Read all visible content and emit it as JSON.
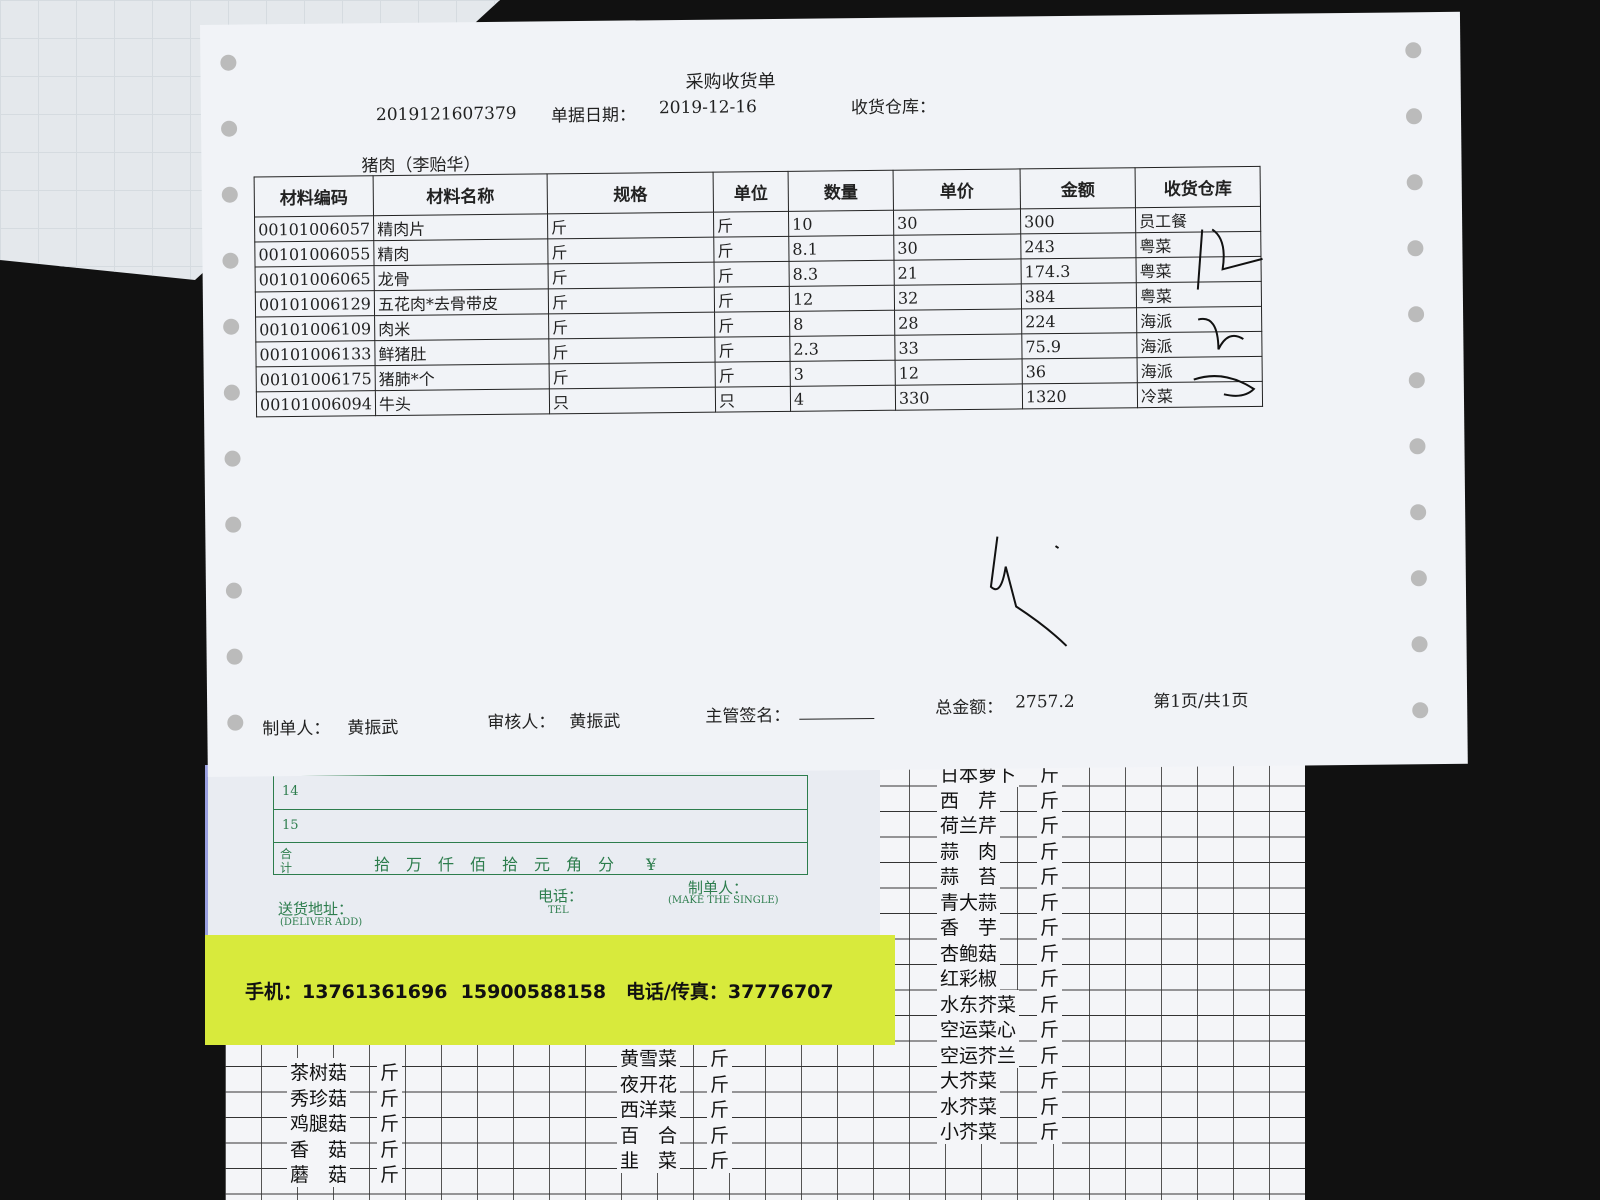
{
  "receipt": {
    "title": "采购收货单",
    "doc_no": "2019121607379",
    "date_label": "单据日期：",
    "date": "2019-12-16",
    "warehouse_label": "收货仓库：",
    "supplier": "猪肉（李贻华）",
    "columns": [
      "材料编码",
      "材料名称",
      "规格",
      "单位",
      "数量",
      "单价",
      "金额",
      "收货仓库"
    ],
    "rows": [
      [
        "00101006057",
        "精肉片",
        "斤",
        "斤",
        "10",
        "30",
        "300",
        "员工餐"
      ],
      [
        "00101006055",
        "精肉",
        "斤",
        "斤",
        "8.1",
        "30",
        "243",
        "粤菜"
      ],
      [
        "00101006065",
        "龙骨",
        "斤",
        "斤",
        "8.3",
        "21",
        "174.3",
        "粤菜"
      ],
      [
        "00101006129",
        "五花肉*去骨带皮",
        "斤",
        "斤",
        "12",
        "32",
        "384",
        "粤菜"
      ],
      [
        "00101006109",
        "肉米",
        "斤",
        "斤",
        "8",
        "28",
        "224",
        "海派"
      ],
      [
        "00101006133",
        "鲜猪肚",
        "斤",
        "斤",
        "2.3",
        "33",
        "75.9",
        "海派"
      ],
      [
        "00101006175",
        "猪肺*个",
        "斤",
        "斤",
        "3",
        "12",
        "36",
        "海派"
      ],
      [
        "00101006094",
        "牛头",
        "只",
        "只",
        "4",
        "330",
        "1320",
        "冷菜"
      ]
    ],
    "maker_label": "制单人：",
    "maker": "黄振武",
    "auditor_label": "审核人：",
    "auditor": "黄振武",
    "supervisor_label": "主管签名：",
    "total_label": "总金额：",
    "total": "2757.2",
    "page": "第1页/共1页"
  },
  "green_receipt": {
    "rows": [
      "14",
      "15"
    ],
    "total_label": "合计",
    "amount_units": "拾　万　仟　佰　拾　元　角　分　　¥",
    "address_label": "送货地址：",
    "address_en": "(DELIVER ADD)",
    "tel_label": "电话：",
    "tel_en": "TEL",
    "maker_label": "制单人：",
    "maker_en": "(MAKE THE SINGLE)"
  },
  "yellow_strip": {
    "contact": "手机：13761361696  15900588158   电话/传真：37776707"
  },
  "grid_sheet": {
    "right_items": [
      "日本萝卜",
      "西　芹",
      "荷兰芹",
      "蒜　肉",
      "蒜　苔",
      "青大蒜",
      "香　芋",
      "杏鲍菇",
      "红彩椒",
      "水东芥菜",
      "空运菜心",
      "空运芥兰",
      "大芥菜",
      "水芥菜",
      "小芥菜"
    ],
    "left_items": [
      "茶树菇",
      "秀珍菇",
      "鸡腿菇",
      "香　菇",
      "蘑　菇"
    ],
    "middle_items": [
      "黄雪菜",
      "夜开花",
      "西洋菜",
      "百　合",
      "韭　菜"
    ],
    "unit": "斤"
  }
}
